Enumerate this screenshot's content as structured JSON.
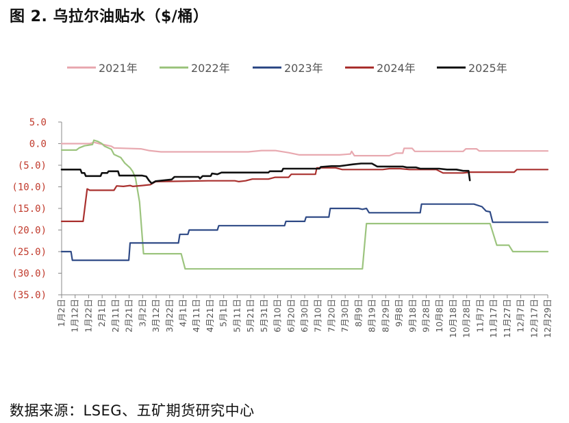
{
  "figure": {
    "title": "图 2.  乌拉尔油贴水（$/桶）",
    "source": "数据来源：LSEG、五矿期货研究中心"
  },
  "chart_data": {
    "type": "line",
    "title": "乌拉尔油贴水（$/桶）",
    "xlabel": "",
    "ylabel": "",
    "ylim": [
      -35,
      5
    ],
    "x_range_days": [
      1,
      363
    ],
    "ytick_labels": [
      "5.0",
      "0.0",
      "(5.0)",
      "(10.0)",
      "(15.0)",
      "(20.0)",
      "(25.0)",
      "(30.0)",
      "(35.0)"
    ],
    "categories": [
      "1月2日",
      "1月12日",
      "1月22日",
      "2月1日",
      "2月11日",
      "2月21日",
      "3月2日",
      "3月12日",
      "3月22日",
      "4月1日",
      "4月11日",
      "4月21日",
      "5月1日",
      "5月11日",
      "5月21日",
      "5月31日",
      "6月10日",
      "6月20日",
      "6月30日",
      "7月10日",
      "7月20日",
      "7月30日",
      "8月9日",
      "8月19日",
      "8月29日",
      "9月8日",
      "9月18日",
      "9月28日",
      "10月8日",
      "10月18日",
      "10月28日",
      "11月7日",
      "11月17日",
      "11月27日",
      "12月7日",
      "12月17日",
      "12月29日"
    ],
    "grid": false,
    "legend_position": "top",
    "series": [
      {
        "name": "2021年",
        "color": "#e8a9b0",
        "points": [
          [
            1,
            0
          ],
          [
            22,
            0
          ],
          [
            25,
            0.3
          ],
          [
            29,
            0
          ],
          [
            38,
            -0.6
          ],
          [
            40,
            -1
          ],
          [
            60,
            -1.2
          ],
          [
            66,
            -1.6
          ],
          [
            75,
            -1.9
          ],
          [
            140,
            -1.9
          ],
          [
            150,
            -1.6
          ],
          [
            160,
            -1.6
          ],
          [
            170,
            -2.1
          ],
          [
            178,
            -2.6
          ],
          [
            208,
            -2.6
          ],
          [
            216,
            -2.4
          ],
          [
            217,
            -1.8
          ],
          [
            219,
            -2.8
          ],
          [
            245,
            -2.8
          ],
          [
            250,
            -2.2
          ],
          [
            255,
            -2.2
          ],
          [
            256,
            -1.1
          ],
          [
            262,
            -1.1
          ],
          [
            264,
            -1.8
          ],
          [
            300,
            -1.8
          ],
          [
            302,
            -1.2
          ],
          [
            310,
            -1.2
          ],
          [
            312,
            -1.7
          ],
          [
            363,
            -1.7
          ]
        ]
      },
      {
        "name": "2022年",
        "color": "#9cc47e",
        "points": [
          [
            1,
            -1.5
          ],
          [
            12,
            -1.5
          ],
          [
            14,
            -1
          ],
          [
            18,
            -0.5
          ],
          [
            24,
            -0.2
          ],
          [
            25,
            0.8
          ],
          [
            28,
            0.5
          ],
          [
            31,
            0
          ],
          [
            33,
            -0.6
          ],
          [
            38,
            -1.3
          ],
          [
            40,
            -2.5
          ],
          [
            45,
            -3.2
          ],
          [
            48,
            -4.5
          ],
          [
            52,
            -5.6
          ],
          [
            54,
            -6.5
          ],
          [
            56,
            -8
          ],
          [
            59,
            -13.5
          ],
          [
            62,
            -25.5
          ],
          [
            90,
            -25.5
          ],
          [
            93,
            -29
          ],
          [
            225,
            -29
          ],
          [
            228,
            -18.5
          ],
          [
            320,
            -18.5
          ],
          [
            325,
            -23.5
          ],
          [
            334,
            -23.5
          ],
          [
            337,
            -25
          ],
          [
            363,
            -25
          ]
        ]
      },
      {
        "name": "2023年",
        "color": "#2f4a86",
        "points": [
          [
            1,
            -25
          ],
          [
            8,
            -25
          ],
          [
            9,
            -27
          ],
          [
            51,
            -27
          ],
          [
            52,
            -23
          ],
          [
            88,
            -23
          ],
          [
            89,
            -21
          ],
          [
            95,
            -21
          ],
          [
            96,
            -20
          ],
          [
            117,
            -20
          ],
          [
            118,
            -19
          ],
          [
            167,
            -19
          ],
          [
            168,
            -18
          ],
          [
            182,
            -18
          ],
          [
            183,
            -17
          ],
          [
            200,
            -17
          ],
          [
            201,
            -15
          ],
          [
            222,
            -15
          ],
          [
            225,
            -15.2
          ],
          [
            228,
            -15
          ],
          [
            230,
            -16
          ],
          [
            268,
            -16
          ],
          [
            269,
            -14
          ],
          [
            308,
            -14
          ],
          [
            314,
            -14.6
          ],
          [
            317,
            -15.6
          ],
          [
            320,
            -15.8
          ],
          [
            322,
            -18.2
          ],
          [
            363,
            -18.2
          ]
        ]
      },
      {
        "name": "2024年",
        "color": "#a9302e",
        "points": [
          [
            1,
            -18
          ],
          [
            17,
            -18
          ],
          [
            20,
            -10.5
          ],
          [
            22,
            -10.8
          ],
          [
            40,
            -10.8
          ],
          [
            42,
            -9.8
          ],
          [
            47,
            -9.9
          ],
          [
            52,
            -9.7
          ],
          [
            54,
            -9.9
          ],
          [
            61,
            -9.7
          ],
          [
            67,
            -9.5
          ],
          [
            71,
            -8.8
          ],
          [
            110,
            -8.6
          ],
          [
            130,
            -8.6
          ],
          [
            133,
            -8.8
          ],
          [
            138,
            -8.6
          ],
          [
            143,
            -8.2
          ],
          [
            155,
            -8.2
          ],
          [
            160,
            -7.8
          ],
          [
            170,
            -7.8
          ],
          [
            172,
            -7.1
          ],
          [
            190,
            -7.1
          ],
          [
            191,
            -5.6
          ],
          [
            205,
            -5.6
          ],
          [
            210,
            -6
          ],
          [
            240,
            -6
          ],
          [
            245,
            -5.8
          ],
          [
            253,
            -5.8
          ],
          [
            260,
            -6
          ],
          [
            280,
            -6
          ],
          [
            285,
            -6.8
          ],
          [
            300,
            -6.8
          ],
          [
            305,
            -6.6
          ],
          [
            338,
            -6.6
          ],
          [
            340,
            -6
          ],
          [
            363,
            -6
          ]
        ]
      },
      {
        "name": "2025年",
        "color": "#111111",
        "points": [
          [
            1,
            -6
          ],
          [
            15,
            -6
          ],
          [
            16,
            -6.8
          ],
          [
            18,
            -6.8
          ],
          [
            19,
            -7.5
          ],
          [
            30,
            -7.5
          ],
          [
            31,
            -6.8
          ],
          [
            35,
            -6.8
          ],
          [
            36,
            -6.4
          ],
          [
            43,
            -6.4
          ],
          [
            44,
            -7.4
          ],
          [
            61,
            -7.4
          ],
          [
            64,
            -7.6
          ],
          [
            66,
            -8.5
          ],
          [
            68,
            -9.2
          ],
          [
            71,
            -8.7
          ],
          [
            83,
            -8.3
          ],
          [
            85,
            -7.7
          ],
          [
            103,
            -7.7
          ],
          [
            104,
            -8.1
          ],
          [
            106,
            -7.5
          ],
          [
            112,
            -7.5
          ],
          [
            113,
            -6.9
          ],
          [
            117,
            -7.1
          ],
          [
            120,
            -6.7
          ],
          [
            155,
            -6.7
          ],
          [
            156,
            -6.4
          ],
          [
            165,
            -6.4
          ],
          [
            166,
            -5.8
          ],
          [
            193,
            -5.8
          ],
          [
            194,
            -5.4
          ],
          [
            202,
            -5.2
          ],
          [
            208,
            -5.2
          ],
          [
            213,
            -5
          ],
          [
            218,
            -4.8
          ],
          [
            224,
            -4.6
          ],
          [
            232,
            -4.6
          ],
          [
            236,
            -5.3
          ],
          [
            255,
            -5.3
          ],
          [
            258,
            -5.5
          ],
          [
            265,
            -5.5
          ],
          [
            268,
            -5.8
          ],
          [
            282,
            -5.8
          ],
          [
            288,
            -6
          ],
          [
            295,
            -6
          ],
          [
            300,
            -6.3
          ],
          [
            304,
            -6.3
          ],
          [
            305,
            -8.5
          ]
        ]
      }
    ]
  }
}
